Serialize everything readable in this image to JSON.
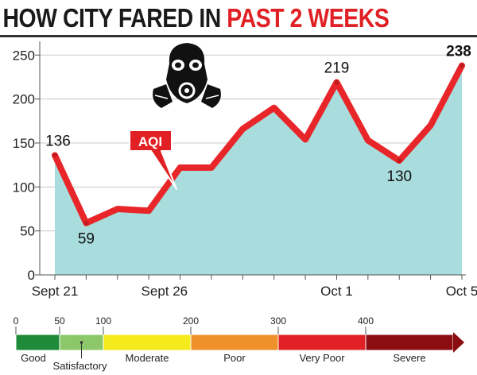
{
  "title": {
    "main": "HOW CITY FARED IN ",
    "highlight": "PAST 2 WEEKS"
  },
  "colors": {
    "line": "#e8262a",
    "area": "#a9dcdc",
    "grid": "#c8c8c8",
    "marker": "#c21a1f"
  },
  "chart_data": {
    "type": "area",
    "series": [
      {
        "name": "AQI",
        "values": [
          136,
          59,
          75,
          73,
          122,
          122,
          166,
          190,
          154,
          219,
          153,
          130,
          170,
          238
        ]
      }
    ],
    "x_index": [
      1,
      2,
      3,
      4,
      5,
      6,
      7,
      8,
      9,
      10,
      11,
      12,
      13,
      14
    ],
    "xticks": [
      {
        "label": "Sept 21",
        "index": 1
      },
      {
        "label": "Sept 26",
        "index": 4.5
      },
      {
        "label": "Oct 1",
        "index": 10
      },
      {
        "label": "Oct 5",
        "index": 14
      }
    ],
    "yticks": [
      0,
      50,
      100,
      150,
      200,
      250
    ],
    "ylim": [
      0,
      262
    ],
    "grid": "horizontal",
    "data_labels": [
      {
        "index": 1,
        "text": "136",
        "pos": "above"
      },
      {
        "index": 2,
        "text": "59",
        "pos": "below"
      },
      {
        "index": 10,
        "text": "219",
        "pos": "above"
      },
      {
        "index": 12,
        "text": "130",
        "pos": "below"
      },
      {
        "index": 14,
        "text": "238",
        "pos": "above",
        "bold": true
      }
    ],
    "annotation": "AQI",
    "icon": "gas-mask-icon"
  },
  "aqi_scale": {
    "breakpoints": [
      "0",
      "50",
      "100",
      "200",
      "300",
      "400"
    ],
    "categories": [
      {
        "label": "Good",
        "color": "#1f8a3a",
        "from": 0,
        "to": 50
      },
      {
        "label": "Satisfactory",
        "color": "#8cc86a",
        "from": 50,
        "to": 100
      },
      {
        "label": "Moderate",
        "color": "#f5ea1c",
        "from": 100,
        "to": 200
      },
      {
        "label": "Poor",
        "color": "#f0902a",
        "from": 200,
        "to": 300
      },
      {
        "label": "Very Poor",
        "color": "#e02024",
        "from": 300,
        "to": 400
      },
      {
        "label": "Severe",
        "color": "#8b0d12",
        "from": 400,
        "to": 500
      }
    ]
  }
}
